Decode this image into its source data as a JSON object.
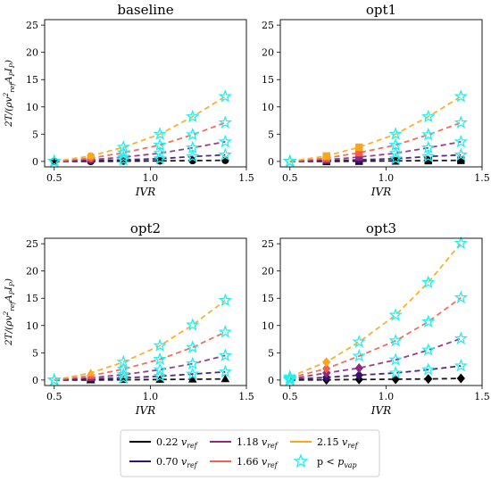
{
  "chart_data": [
    {
      "type": "line",
      "title": "baseline",
      "xlabel": "IVR",
      "ylabel": "2T/(ρv²_ref A_P I_P)",
      "x": [
        0.5,
        0.69,
        0.86,
        1.05,
        1.22,
        1.39
      ],
      "xlim": [
        0.45,
        1.5
      ],
      "ylim": [
        -1,
        26
      ],
      "xticks": [
        "0.5",
        "1.0",
        "1.5"
      ],
      "yticks": [
        "0",
        "5",
        "10",
        "15",
        "20",
        "25"
      ],
      "marker": "circle",
      "series": [
        {
          "name": "0.22 v_ref",
          "values": [
            0.0,
            0.0,
            0.05,
            0.1,
            0.15,
            0.2
          ],
          "star": [
            false,
            false,
            false,
            false,
            false,
            false
          ]
        },
        {
          "name": "0.70 v_ref",
          "values": [
            0.0,
            0.15,
            0.3,
            0.5,
            0.9,
            1.2
          ],
          "star": [
            true,
            false,
            true,
            true,
            true,
            true
          ]
        },
        {
          "name": "1.18 v_ref",
          "values": [
            0.0,
            0.3,
            0.8,
            1.5,
            2.5,
            3.6
          ],
          "star": [
            true,
            false,
            true,
            true,
            true,
            true
          ]
        },
        {
          "name": "1.66 v_ref",
          "values": [
            0.0,
            0.6,
            1.6,
            3.0,
            4.9,
            7.1
          ],
          "star": [
            true,
            false,
            true,
            true,
            true,
            true
          ]
        },
        {
          "name": "2.15 v_ref",
          "values": [
            0.0,
            1.0,
            2.6,
            5.0,
            8.2,
            11.9
          ],
          "star": [
            true,
            false,
            true,
            true,
            true,
            true
          ]
        }
      ]
    },
    {
      "type": "line",
      "title": "opt1",
      "xlabel": "IVR",
      "ylabel": "",
      "x": [
        0.5,
        0.69,
        0.86,
        1.05,
        1.22,
        1.39
      ],
      "xlim": [
        0.45,
        1.5
      ],
      "ylim": [
        -1,
        26
      ],
      "xticks": [
        "0.5",
        "1.0",
        "1.5"
      ],
      "yticks": [
        "0",
        "5",
        "10",
        "15",
        "20",
        "25"
      ],
      "marker": "square",
      "series": [
        {
          "name": "0.22 v_ref",
          "values": [
            0.0,
            0.0,
            0.05,
            0.1,
            0.15,
            0.2
          ],
          "star": [
            true,
            false,
            false,
            false,
            false,
            false
          ]
        },
        {
          "name": "0.70 v_ref",
          "values": [
            0.0,
            0.15,
            0.3,
            0.5,
            0.9,
            1.2
          ],
          "star": [
            true,
            false,
            false,
            true,
            true,
            true
          ]
        },
        {
          "name": "1.18 v_ref",
          "values": [
            0.0,
            0.3,
            0.8,
            1.5,
            2.5,
            3.6
          ],
          "star": [
            true,
            false,
            false,
            true,
            true,
            true
          ]
        },
        {
          "name": "1.66 v_ref",
          "values": [
            0.0,
            0.6,
            1.6,
            3.0,
            4.9,
            7.1
          ],
          "star": [
            true,
            false,
            false,
            true,
            true,
            true
          ]
        },
        {
          "name": "2.15 v_ref",
          "values": [
            0.0,
            1.0,
            2.6,
            5.0,
            8.2,
            11.9
          ],
          "star": [
            true,
            false,
            false,
            true,
            true,
            true
          ]
        }
      ]
    },
    {
      "type": "line",
      "title": "opt2",
      "xlabel": "IVR",
      "ylabel": "2T/(ρv²_ref A_P I_P)",
      "x": [
        0.5,
        0.69,
        0.86,
        1.05,
        1.22,
        1.39
      ],
      "xlim": [
        0.45,
        1.5
      ],
      "ylim": [
        -1,
        26
      ],
      "xticks": [
        "0.5",
        "1.0",
        "1.5"
      ],
      "yticks": [
        "0",
        "5",
        "10",
        "15",
        "20",
        "25"
      ],
      "marker": "triangle",
      "series": [
        {
          "name": "0.22 v_ref",
          "values": [
            0.0,
            0.0,
            0.05,
            0.1,
            0.15,
            0.2
          ],
          "star": [
            true,
            false,
            false,
            false,
            false,
            false
          ]
        },
        {
          "name": "0.70 v_ref",
          "values": [
            0.0,
            0.2,
            0.4,
            0.7,
            1.1,
            1.5
          ],
          "star": [
            true,
            false,
            true,
            true,
            true,
            true
          ]
        },
        {
          "name": "1.18 v_ref",
          "values": [
            0.0,
            0.4,
            1.0,
            1.9,
            3.0,
            4.5
          ],
          "star": [
            true,
            false,
            true,
            true,
            true,
            true
          ]
        },
        {
          "name": "1.66 v_ref",
          "values": [
            0.0,
            0.8,
            2.0,
            3.8,
            6.0,
            8.8
          ],
          "star": [
            true,
            false,
            true,
            true,
            true,
            true
          ]
        },
        {
          "name": "2.15 v_ref",
          "values": [
            0.0,
            1.3,
            3.3,
            6.3,
            10.1,
            14.6
          ],
          "star": [
            true,
            false,
            true,
            true,
            true,
            true
          ]
        }
      ]
    },
    {
      "type": "line",
      "title": "opt3",
      "xlabel": "IVR",
      "ylabel": "",
      "x": [
        0.5,
        0.69,
        0.86,
        1.05,
        1.22,
        1.39
      ],
      "xlim": [
        0.45,
        1.5
      ],
      "ylim": [
        -1,
        26
      ],
      "xticks": [
        "0.5",
        "1.0",
        "1.5"
      ],
      "yticks": [
        "0",
        "5",
        "10",
        "15",
        "20",
        "25"
      ],
      "marker": "diamond",
      "series": [
        {
          "name": "0.22 v_ref",
          "values": [
            0.0,
            0.05,
            0.1,
            0.15,
            0.2,
            0.3
          ],
          "star": [
            true,
            false,
            false,
            false,
            false,
            false
          ]
        },
        {
          "name": "0.70 v_ref",
          "values": [
            0.1,
            0.5,
            0.9,
            1.3,
            1.9,
            2.6
          ],
          "star": [
            true,
            false,
            false,
            true,
            true,
            true
          ]
        },
        {
          "name": "1.18 v_ref",
          "values": [
            0.2,
            1.3,
            2.2,
            3.7,
            5.5,
            7.6
          ],
          "star": [
            true,
            false,
            false,
            true,
            true,
            true
          ]
        },
        {
          "name": "1.66 v_ref",
          "values": [
            0.4,
            2.1,
            4.4,
            7.2,
            10.7,
            15.1
          ],
          "star": [
            true,
            false,
            true,
            true,
            true,
            true
          ]
        },
        {
          "name": "2.15 v_ref",
          "values": [
            0.6,
            3.3,
            7.0,
            11.9,
            17.9,
            25.1
          ],
          "star": [
            true,
            false,
            true,
            true,
            true,
            true
          ]
        }
      ]
    }
  ],
  "legend": {
    "items": [
      {
        "label": "0.22 v_ref",
        "color": "#000000",
        "kind": "line"
      },
      {
        "label": "0.70 v_ref",
        "color": "#3b0f70",
        "kind": "line"
      },
      {
        "label": "1.18 v_ref",
        "color": "#8c2981",
        "kind": "line"
      },
      {
        "label": "1.66 v_ref",
        "color": "#f0604d",
        "kind": "line"
      },
      {
        "label": "2.15 v_ref",
        "color": "#fba71e",
        "kind": "line"
      },
      {
        "label": "p < p_vap",
        "color": "#22f0f0",
        "kind": "star"
      }
    ]
  },
  "colors": {
    "series": [
      "#000000",
      "#3b0f70",
      "#8c2981",
      "#f0604d",
      "#fba71e"
    ],
    "star": "#22f0f0"
  }
}
